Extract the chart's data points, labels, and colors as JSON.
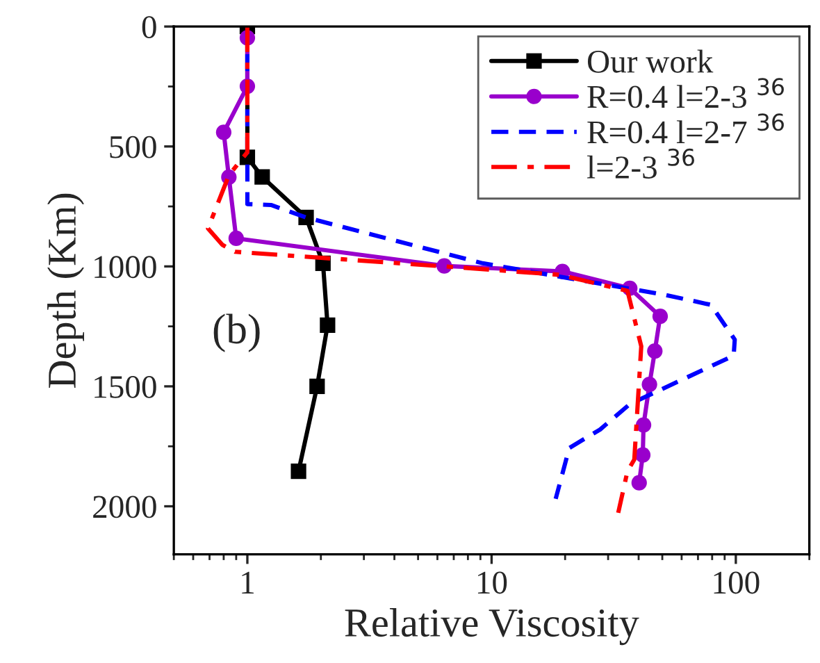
{
  "chart_data": {
    "type": "line",
    "orientation": "horizontal",
    "xlabel": "Relative Viscosity",
    "ylabel": "Depth (Km)",
    "log": "x",
    "xlim": [
      0.5,
      200
    ],
    "xticks": [
      1,
      10,
      100
    ],
    "ylim": [
      2200,
      0
    ],
    "yticks": [
      0,
      500,
      1000,
      1500,
      2000
    ],
    "grid": false,
    "legend": "top right",
    "annotations": [
      "(b)"
    ],
    "series": [
      {
        "name": "Our work",
        "color": "#000000",
        "marker": "square",
        "line_style": "solid",
        "values": [
          1.0,
          1.0,
          1.15,
          1.74,
          2.04,
          2.13,
          1.93,
          1.62
        ],
        "x": [
          0,
          545,
          627,
          796,
          987,
          1245,
          1500,
          1854
        ]
      },
      {
        "name": "R=0.4 l=2-3 $^{36}$",
        "color": "#9900cc",
        "marker": "circle",
        "line_style": "solid",
        "values": [
          1.0,
          1.0,
          0.8,
          0.84,
          0.9,
          6.4,
          19.5,
          36.8,
          49,
          46.6,
          44.3,
          41.9,
          41.6,
          40.2
        ],
        "x": [
          47,
          249,
          441,
          628,
          883,
          998,
          1021,
          1091,
          1208,
          1353,
          1492,
          1661,
          1786,
          1902
        ]
      },
      {
        "name": "R=0.4 l=2-7 $^{36}$",
        "color": "#0000ff",
        "marker": "none",
        "line_style": "dashed",
        "values": [
          1.0,
          1.0,
          1.25,
          1.74,
          9.2,
          51,
          79,
          99,
          98,
          36.8,
          27.8,
          20.8,
          18.3
        ],
        "x": [
          0,
          740,
          744,
          796,
          987,
          1118,
          1160,
          1305,
          1372,
          1574,
          1680,
          1757,
          1969
        ]
      },
      {
        "name": "l=2-3 $^{36}$",
        "color": "#ff0000",
        "marker": "none",
        "line_style": "dashdot",
        "values": [
          1.0,
          1.0,
          0.84,
          0.69,
          0.79,
          0.89,
          7.8,
          19.0,
          36,
          41,
          38.4,
          36,
          33
        ],
        "x": [
          0,
          524,
          620,
          842,
          910,
          939,
          1006,
          1035,
          1102,
          1333,
          1805,
          1854,
          2027
        ]
      }
    ]
  }
}
